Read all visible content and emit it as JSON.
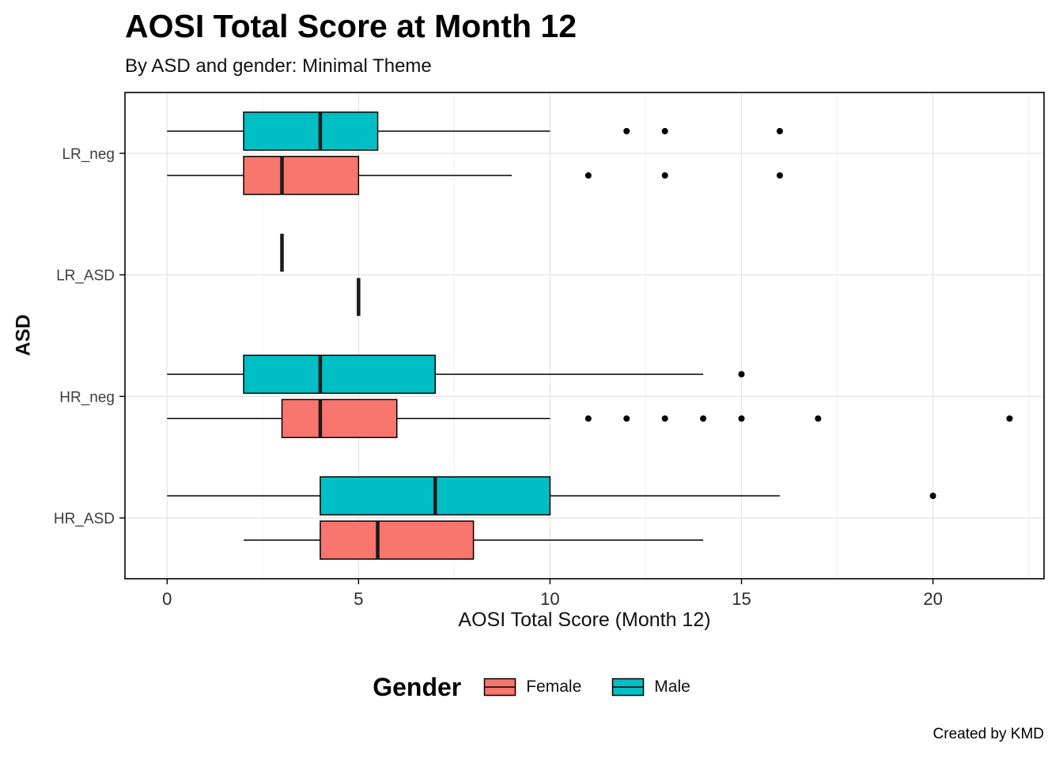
{
  "chart_data": {
    "type": "boxplot",
    "orientation": "horizontal",
    "title": "AOSI Total Score at Month 12",
    "subtitle": "By ASD and gender: Minimal Theme",
    "xlabel": "AOSI Total Score (Month 12)",
    "ylabel": "ASD",
    "caption": "Created by KMD",
    "xticks": [
      0,
      5,
      10,
      15,
      20
    ],
    "xlim": [
      -1.1,
      22.9
    ],
    "categories": [
      "LR_neg",
      "LR_ASD",
      "HR_neg",
      "HR_ASD"
    ],
    "grid": {
      "major_color": "#E3E3E3",
      "minor_color": "#F1F1F1",
      "panel_border": "#000000"
    },
    "legend": {
      "title": "Gender",
      "entries": [
        {
          "label": "Female",
          "color": "#F8766D"
        },
        {
          "label": "Male",
          "color": "#00BFC4"
        }
      ]
    },
    "series": [
      {
        "name": "Male",
        "color": "#00BFC4",
        "boxes": [
          {
            "category": "LR_neg",
            "min": 0,
            "q1": 2,
            "median": 4,
            "q3": 5.5,
            "max": 10,
            "outliers": [
              12,
              13,
              16
            ]
          },
          {
            "category": "LR_ASD",
            "min": 3,
            "q1": 3,
            "median": 3,
            "q3": 3,
            "max": 3,
            "outliers": []
          },
          {
            "category": "HR_neg",
            "min": 0,
            "q1": 2,
            "median": 4,
            "q3": 7,
            "max": 14,
            "outliers": [
              15
            ]
          },
          {
            "category": "HR_ASD",
            "min": 0,
            "q1": 4,
            "median": 7,
            "q3": 10,
            "max": 16,
            "outliers": [
              20
            ]
          }
        ]
      },
      {
        "name": "Female",
        "color": "#F8766D",
        "boxes": [
          {
            "category": "LR_neg",
            "min": 0,
            "q1": 2,
            "median": 3,
            "q3": 5,
            "max": 9,
            "outliers": [
              11,
              13,
              16
            ]
          },
          {
            "category": "LR_ASD",
            "min": 5,
            "q1": 5,
            "median": 5,
            "q3": 5,
            "max": 5,
            "outliers": []
          },
          {
            "category": "HR_neg",
            "min": 0,
            "q1": 3,
            "median": 4,
            "q3": 6,
            "max": 10,
            "outliers": [
              11,
              12,
              13,
              14,
              15,
              17,
              22
            ]
          },
          {
            "category": "HR_ASD",
            "min": 2,
            "q1": 4,
            "median": 5.5,
            "q3": 8,
            "max": 14,
            "outliers": []
          }
        ]
      }
    ]
  }
}
